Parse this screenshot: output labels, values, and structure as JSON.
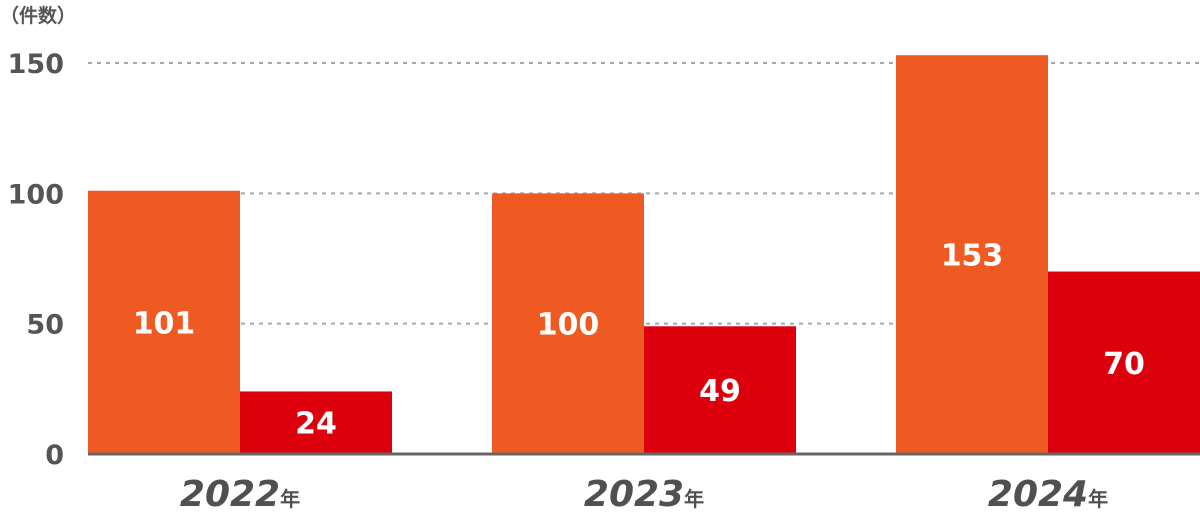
{
  "chart_data": {
    "type": "bar",
    "ylabel": "（件数）",
    "ylim": [
      0,
      150
    ],
    "yticks": [
      0,
      50,
      100,
      150
    ],
    "grid": true,
    "categories": [
      "2022",
      "2023",
      "2024"
    ],
    "category_suffix": "年",
    "series": [
      {
        "values": [
          101,
          100,
          153
        ],
        "color": "#ef5a22"
      },
      {
        "values": [
          24,
          49,
          70
        ],
        "color": "#dc000c"
      }
    ],
    "data_labels": true
  }
}
